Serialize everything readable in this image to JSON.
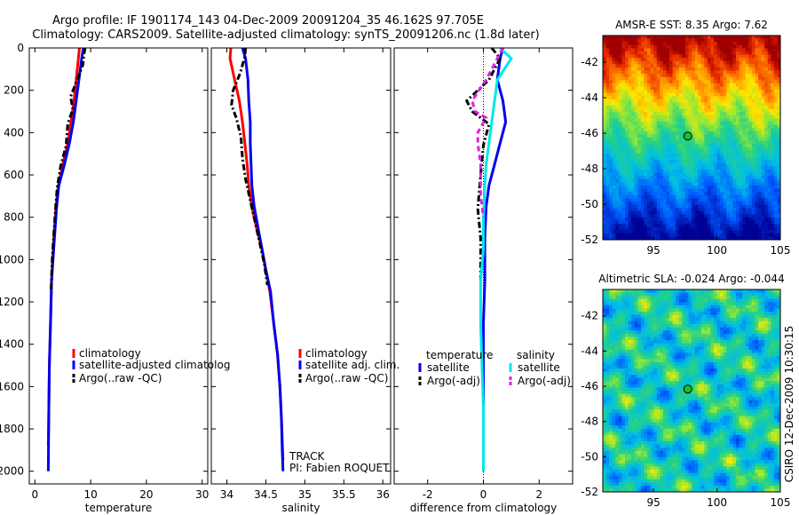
{
  "title_line1": "Argo profile: IF 1901174_143 04-Dec-2009 20091204_35 46.162S 97.705E",
  "title_line2": "Climatology: CARS2009. Satellite-adjusted climatology: synTS_20091206.nc (1.8d later)",
  "side_label": "CSIRO 12-Dec-2009 10:30:15",
  "colors": {
    "clim": "#ff0000",
    "sat": "#0000ee",
    "argo": "#000000",
    "sat_sal": "#00e8e8",
    "argo_sal": "#e020e0"
  },
  "chart_data": [
    {
      "id": "temperature",
      "type": "line",
      "xlabel": "temperature",
      "ylabel": "",
      "xlim": [
        -1,
        31
      ],
      "ylim": [
        2060,
        0
      ],
      "y_reversed": true,
      "xticks": [
        0,
        10,
        20,
        30
      ],
      "xtick_labels": [
        "0",
        "10",
        "20",
        "30"
      ],
      "yticks": [
        0,
        200,
        400,
        600,
        800,
        1000,
        1200,
        1400,
        1600,
        1800,
        2000
      ],
      "ytick_labels": [
        "0",
        "200",
        "400",
        "600",
        "800",
        "1000",
        "1200",
        "1400",
        "1600",
        "1800",
        "2000"
      ],
      "legend": {
        "placement": "lower-right",
        "labels": [
          "climatology",
          "satellite-adjusted climatolog",
          "Argo(..raw -QC)"
        ]
      },
      "series": [
        {
          "name": "climatology",
          "color": "#ff0000",
          "style": "solid",
          "points": [
            [
              8.0,
              0
            ],
            [
              7.8,
              50
            ],
            [
              7.4,
              150
            ],
            [
              7.0,
              250
            ],
            [
              6.5,
              350
            ],
            [
              5.9,
              450
            ],
            [
              5.0,
              550
            ],
            [
              4.2,
              650
            ],
            [
              3.8,
              750
            ],
            [
              3.4,
              900
            ],
            [
              3.0,
              1100
            ],
            [
              2.8,
              1300
            ],
            [
              2.6,
              1500
            ],
            [
              2.5,
              1700
            ],
            [
              2.4,
              1880
            ]
          ]
        },
        {
          "name": "satellite-adjusted climatolog",
          "color": "#0000ee",
          "style": "solid",
          "points": [
            [
              8.7,
              0
            ],
            [
              8.4,
              50
            ],
            [
              7.9,
              150
            ],
            [
              7.4,
              250
            ],
            [
              6.9,
              350
            ],
            [
              6.2,
              450
            ],
            [
              5.3,
              550
            ],
            [
              4.3,
              650
            ],
            [
              3.9,
              750
            ],
            [
              3.5,
              900
            ],
            [
              3.0,
              1100
            ],
            [
              2.8,
              1300
            ],
            [
              2.6,
              1500
            ],
            [
              2.5,
              1700
            ],
            [
              2.4,
              2000
            ]
          ]
        },
        {
          "name": "Argo(..raw -QC)",
          "color": "#000000",
          "style": "dashdot",
          "points": [
            [
              9.0,
              0
            ],
            [
              8.8,
              30
            ],
            [
              8.6,
              80
            ],
            [
              7.6,
              150
            ],
            [
              6.4,
              230
            ],
            [
              6.8,
              290
            ],
            [
              5.9,
              360
            ],
            [
              5.6,
              460
            ],
            [
              4.6,
              560
            ],
            [
              4.0,
              660
            ],
            [
              3.7,
              760
            ],
            [
              3.4,
              880
            ],
            [
              3.1,
              1000
            ],
            [
              2.9,
              1150
            ]
          ]
        }
      ]
    },
    {
      "id": "salinity",
      "type": "line",
      "xlabel": "salinity",
      "ylabel": "",
      "xlim": [
        33.8,
        36.1
      ],
      "ylim": [
        2060,
        0
      ],
      "y_reversed": true,
      "xticks": [
        34,
        34.5,
        35,
        35.5,
        36
      ],
      "xtick_labels": [
        "34",
        "34.5",
        "35",
        "35.5",
        "36"
      ],
      "legend": {
        "placement": "lower-right",
        "labels": [
          "climatology",
          "satellite adj. clim.",
          "Argo(..raw -QC)"
        ]
      },
      "annotations": [
        "TRACK",
        "PI: Fabien ROQUET"
      ],
      "series": [
        {
          "name": "climatology",
          "color": "#ff0000",
          "style": "solid",
          "points": [
            [
              34.05,
              0
            ],
            [
              34.04,
              50
            ],
            [
              34.1,
              150
            ],
            [
              34.16,
              250
            ],
            [
              34.2,
              350
            ],
            [
              34.23,
              450
            ],
            [
              34.26,
              550
            ],
            [
              34.28,
              650
            ],
            [
              34.32,
              750
            ],
            [
              34.38,
              850
            ],
            [
              34.45,
              950
            ],
            [
              34.5,
              1050
            ],
            [
              34.55,
              1150
            ],
            [
              34.6,
              1300
            ],
            [
              34.65,
              1450
            ],
            [
              34.68,
              1600
            ],
            [
              34.7,
              1750
            ],
            [
              34.72,
              1950
            ]
          ]
        },
        {
          "name": "satellite adj. clim.",
          "color": "#0000ee",
          "style": "solid",
          "points": [
            [
              34.2,
              0
            ],
            [
              34.24,
              50
            ],
            [
              34.27,
              150
            ],
            [
              34.28,
              250
            ],
            [
              34.3,
              350
            ],
            [
              34.3,
              450
            ],
            [
              34.31,
              550
            ],
            [
              34.32,
              650
            ],
            [
              34.35,
              750
            ],
            [
              34.4,
              850
            ],
            [
              34.45,
              950
            ],
            [
              34.5,
              1050
            ],
            [
              34.56,
              1150
            ],
            [
              34.6,
              1300
            ],
            [
              34.65,
              1450
            ],
            [
              34.68,
              1600
            ],
            [
              34.7,
              1750
            ],
            [
              34.71,
              1900
            ],
            [
              34.72,
              2000
            ]
          ]
        },
        {
          "name": "Argo(..raw -QC)",
          "color": "#000000",
          "style": "dashdot",
          "points": [
            [
              34.24,
              0
            ],
            [
              34.23,
              40
            ],
            [
              34.17,
              120
            ],
            [
              34.08,
              200
            ],
            [
              34.06,
              270
            ],
            [
              34.12,
              330
            ],
            [
              34.18,
              420
            ],
            [
              34.2,
              520
            ],
            [
              34.24,
              620
            ],
            [
              34.3,
              720
            ],
            [
              34.36,
              820
            ],
            [
              34.42,
              920
            ],
            [
              34.48,
              1020
            ],
            [
              34.52,
              1120
            ]
          ]
        }
      ]
    },
    {
      "id": "difference",
      "type": "line",
      "xlabel": "difference from climatology",
      "ylabel": "",
      "xlim": [
        -3.2,
        3.2
      ],
      "ylim": [
        2060,
        0
      ],
      "y_reversed": true,
      "xticks": [
        -2,
        0,
        2
      ],
      "xtick_labels": [
        "-2",
        "0",
        "2"
      ],
      "legend": {
        "placement": "lower-center",
        "headers": [
          "temperature",
          "salinity"
        ],
        "labels": [
          "satellite",
          "Argo(-adj)",
          "satellite",
          "Argo(-adj)"
        ]
      },
      "series": [
        {
          "name": "temperature satellite",
          "color": "#0000ee",
          "style": "solid",
          "points": [
            [
              0.7,
              0
            ],
            [
              0.6,
              50
            ],
            [
              0.5,
              150
            ],
            [
              0.7,
              250
            ],
            [
              0.8,
              350
            ],
            [
              0.6,
              450
            ],
            [
              0.4,
              550
            ],
            [
              0.2,
              650
            ],
            [
              0.1,
              750
            ],
            [
              0.05,
              900
            ],
            [
              0.05,
              1100
            ],
            [
              0,
              1300
            ],
            [
              0,
              1500
            ],
            [
              0,
              1700
            ],
            [
              0,
              2000
            ]
          ]
        },
        {
          "name": "temperature Argo(-adj)",
          "color": "#000000",
          "style": "dashdot",
          "points": [
            [
              0.3,
              0
            ],
            [
              0.6,
              50
            ],
            [
              0.2,
              150
            ],
            [
              -0.6,
              250
            ],
            [
              -0.4,
              300
            ],
            [
              0.2,
              360
            ],
            [
              0,
              460
            ],
            [
              -0.1,
              600
            ],
            [
              -0.2,
              760
            ],
            [
              -0.1,
              900
            ],
            [
              -0.1,
              1100
            ]
          ]
        },
        {
          "name": "salinity satellite",
          "color": "#00e8e8",
          "style": "solid",
          "points": [
            [
              0.6,
              0
            ],
            [
              1.0,
              50
            ],
            [
              0.5,
              150
            ],
            [
              0.4,
              250
            ],
            [
              0.3,
              350
            ],
            [
              0.2,
              450
            ],
            [
              0.1,
              550
            ],
            [
              0.05,
              650
            ],
            [
              0,
              800
            ],
            [
              0,
              950
            ],
            [
              -0.1,
              1100
            ],
            [
              -0.1,
              1300
            ],
            [
              -0.05,
              1500
            ],
            [
              0,
              1700
            ],
            [
              0,
              2000
            ]
          ]
        },
        {
          "name": "salinity Argo(-adj)",
          "color": "#e020e0",
          "style": "dashed",
          "points": [
            [
              0.7,
              0
            ],
            [
              0.5,
              50
            ],
            [
              0.1,
              150
            ],
            [
              -0.4,
              250
            ],
            [
              -0.3,
              300
            ],
            [
              0.1,
              330
            ],
            [
              -0.2,
              400
            ],
            [
              -0.2,
              450
            ],
            [
              -0.1,
              550
            ],
            [
              -0.1,
              700
            ],
            [
              0,
              800
            ]
          ]
        }
      ]
    },
    {
      "id": "sst_map",
      "type": "heatmap",
      "title": "AMSR-E SST: 8.35 Argo: 7.62",
      "xlim": [
        91,
        105
      ],
      "ylim": [
        -52,
        -40.5
      ],
      "xticks": [
        95,
        100,
        105
      ],
      "xtick_labels": [
        "95",
        "100",
        "105"
      ],
      "yticks": [
        -42,
        -44,
        -46,
        -48,
        -50,
        -52
      ],
      "ytick_labels": [
        "-42",
        "-44",
        "-46",
        "-48",
        "-50",
        "-52"
      ],
      "marker": {
        "lon": 97.7,
        "lat": -46.16
      }
    },
    {
      "id": "sla_map",
      "type": "heatmap",
      "title": "Altimetric SLA: -0.024 Argo: -0.044",
      "xlim": [
        91,
        105
      ],
      "ylim": [
        -52,
        -40.5
      ],
      "xticks": [
        95,
        100,
        105
      ],
      "xtick_labels": [
        "95",
        "100",
        "105"
      ],
      "yticks": [
        -42,
        -44,
        -46,
        -48,
        -50,
        -52
      ],
      "ytick_labels": [
        "-42",
        "-44",
        "-46",
        "-48",
        "-50",
        "-52"
      ],
      "marker": {
        "lon": 97.7,
        "lat": -46.16
      }
    }
  ]
}
